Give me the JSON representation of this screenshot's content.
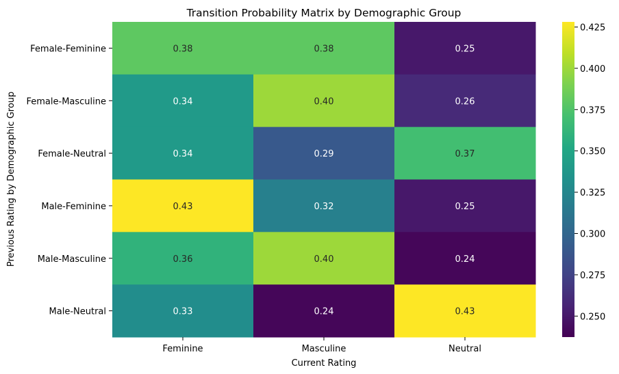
{
  "chart_data": {
    "type": "heatmap",
    "title": "Transition Probability Matrix by Demographic Group",
    "xlabel": "Current Rating",
    "ylabel": "Previous Rating by Demographic Group",
    "x_categories": [
      "Feminine",
      "Masculine",
      "Neutral"
    ],
    "y_categories": [
      "Female-Feminine",
      "Female-Masculine",
      "Female-Neutral",
      "Male-Feminine",
      "Male-Masculine",
      "Male-Neutral"
    ],
    "values": [
      [
        0.38,
        0.38,
        0.25
      ],
      [
        0.34,
        0.4,
        0.26
      ],
      [
        0.34,
        0.29,
        0.37
      ],
      [
        0.43,
        0.32,
        0.25
      ],
      [
        0.36,
        0.4,
        0.24
      ],
      [
        0.33,
        0.24,
        0.43
      ]
    ],
    "annotations": [
      [
        "0.38",
        "0.38",
        "0.25"
      ],
      [
        "0.34",
        "0.40",
        "0.26"
      ],
      [
        "0.34",
        "0.29",
        "0.37"
      ],
      [
        "0.43",
        "0.32",
        "0.25"
      ],
      [
        "0.36",
        "0.40",
        "0.24"
      ],
      [
        "0.33",
        "0.24",
        "0.43"
      ]
    ],
    "colormap": "viridis",
    "colorbar": {
      "range": [
        0.2373,
        0.4281
      ],
      "ticks": [
        0.25,
        0.275,
        0.3,
        0.325,
        0.35,
        0.375,
        0.4,
        0.425
      ],
      "tick_labels": [
        "0.250",
        "0.275",
        "0.300",
        "0.325",
        "0.350",
        "0.375",
        "0.400",
        "0.425"
      ]
    }
  }
}
